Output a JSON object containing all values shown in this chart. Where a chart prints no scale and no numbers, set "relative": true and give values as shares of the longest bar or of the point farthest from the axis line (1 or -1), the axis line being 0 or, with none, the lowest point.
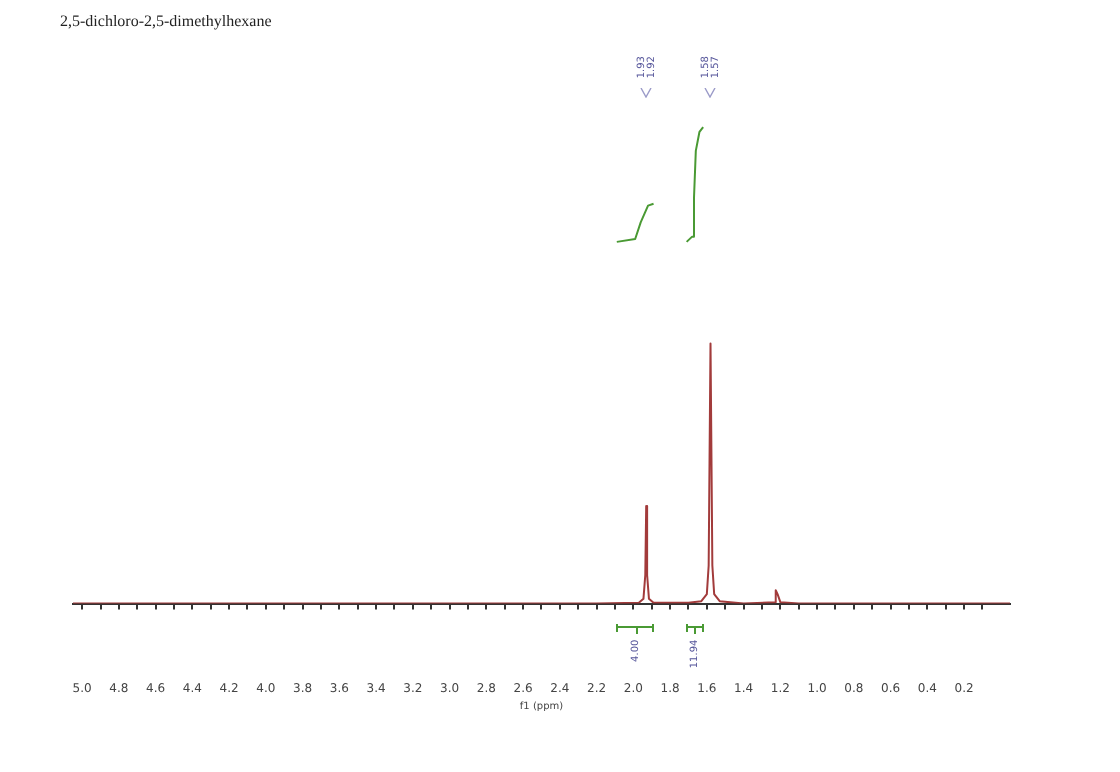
{
  "chart_data": {
    "type": "line",
    "title": "2,5-dichloro-2,5-dimethylhexane",
    "xlabel": "f1 (ppm)",
    "relative": true,
    "grid": false,
    "legend": false,
    "marker": "none",
    "line_style": "solid",
    "tick_labels": "x",
    "xlim": [
      5.05,
      -0.05
    ],
    "xticks": [
      {
        "value": 5.0,
        "label": "5.0"
      },
      {
        "value": 4.9,
        "label": null
      },
      {
        "value": 4.8,
        "label": "4.8"
      },
      {
        "value": 4.7,
        "label": null
      },
      {
        "value": 4.6,
        "label": "4.6"
      },
      {
        "value": 4.5,
        "label": null
      },
      {
        "value": 4.4,
        "label": "4.4"
      },
      {
        "value": 4.3,
        "label": null
      },
      {
        "value": 4.2,
        "label": "4.2"
      },
      {
        "value": 4.1,
        "label": null
      },
      {
        "value": 4.0,
        "label": "4.0"
      },
      {
        "value": 3.9,
        "label": null
      },
      {
        "value": 3.8,
        "label": "3.8"
      },
      {
        "value": 3.7,
        "label": null
      },
      {
        "value": 3.6,
        "label": "3.6"
      },
      {
        "value": 3.5,
        "label": null
      },
      {
        "value": 3.4,
        "label": "3.4"
      },
      {
        "value": 3.3,
        "label": null
      },
      {
        "value": 3.2,
        "label": "3.2"
      },
      {
        "value": 3.1,
        "label": null
      },
      {
        "value": 3.0,
        "label": "3.0"
      },
      {
        "value": 2.9,
        "label": null
      },
      {
        "value": 2.8,
        "label": "2.8"
      },
      {
        "value": 2.7,
        "label": null
      },
      {
        "value": 2.6,
        "label": "2.6"
      },
      {
        "value": 2.5,
        "label": null
      },
      {
        "value": 2.4,
        "label": "2.4"
      },
      {
        "value": 2.3,
        "label": null
      },
      {
        "value": 2.2,
        "label": "2.2"
      },
      {
        "value": 2.1,
        "label": null
      },
      {
        "value": 2.0,
        "label": "2.0"
      },
      {
        "value": 1.9,
        "label": null
      },
      {
        "value": 1.8,
        "label": "1.8"
      },
      {
        "value": 1.7,
        "label": null
      },
      {
        "value": 1.6,
        "label": "1.6"
      },
      {
        "value": 1.5,
        "label": null
      },
      {
        "value": 1.4,
        "label": "1.4"
      },
      {
        "value": 1.3,
        "label": null
      },
      {
        "value": 1.2,
        "label": "1.2"
      },
      {
        "value": 1.1,
        "label": null
      },
      {
        "value": 1.0,
        "label": "1.0"
      },
      {
        "value": 0.9,
        "label": null
      },
      {
        "value": 0.8,
        "label": "0.8"
      },
      {
        "value": 0.7,
        "label": null
      },
      {
        "value": 0.6,
        "label": "0.6"
      },
      {
        "value": 0.5,
        "label": null
      },
      {
        "value": 0.4,
        "label": "0.4"
      },
      {
        "value": 0.3,
        "label": null
      },
      {
        "value": 0.2,
        "label": "0.2"
      },
      {
        "value": 0.1,
        "label": null
      }
    ],
    "series": [
      {
        "color": "#a23b3b",
        "x": [
          5.05,
          2.2,
          1.97,
          1.945,
          1.935,
          1.93,
          1.925,
          1.915,
          1.89,
          1.7,
          1.63,
          1.6,
          1.59,
          1.58,
          1.57,
          1.56,
          1.53,
          1.4,
          1.23,
          1.225,
          1.215,
          1.2,
          1.1,
          -0.05
        ],
        "values": [
          0,
          0,
          0.002,
          0.01,
          0.06,
          0.205,
          0.06,
          0.01,
          0.002,
          0.002,
          0.005,
          0.02,
          0.08,
          0.546,
          0.08,
          0.02,
          0.005,
          0,
          0.003,
          0.028,
          0.02,
          0.003,
          0,
          0
        ]
      },
      {
        "color": "#4a9a34",
        "x": [
          2.09,
          1.99,
          1.96,
          1.92,
          1.89
        ],
        "values": [
          0.759,
          0.765,
          0.8,
          0.835,
          0.839
        ]
      },
      {
        "color": "#4a9a34",
        "x": [
          1.71,
          1.68,
          1.67,
          1.66,
          1.64,
          1.62
        ],
        "values": [
          0.759,
          0.77,
          0.85,
          0.95,
          0.99,
          1.0
        ]
      }
    ],
    "annotations": [
      "1.93",
      "1.92",
      "1.58",
      "1.57",
      "4.00",
      "11.94"
    ]
  }
}
